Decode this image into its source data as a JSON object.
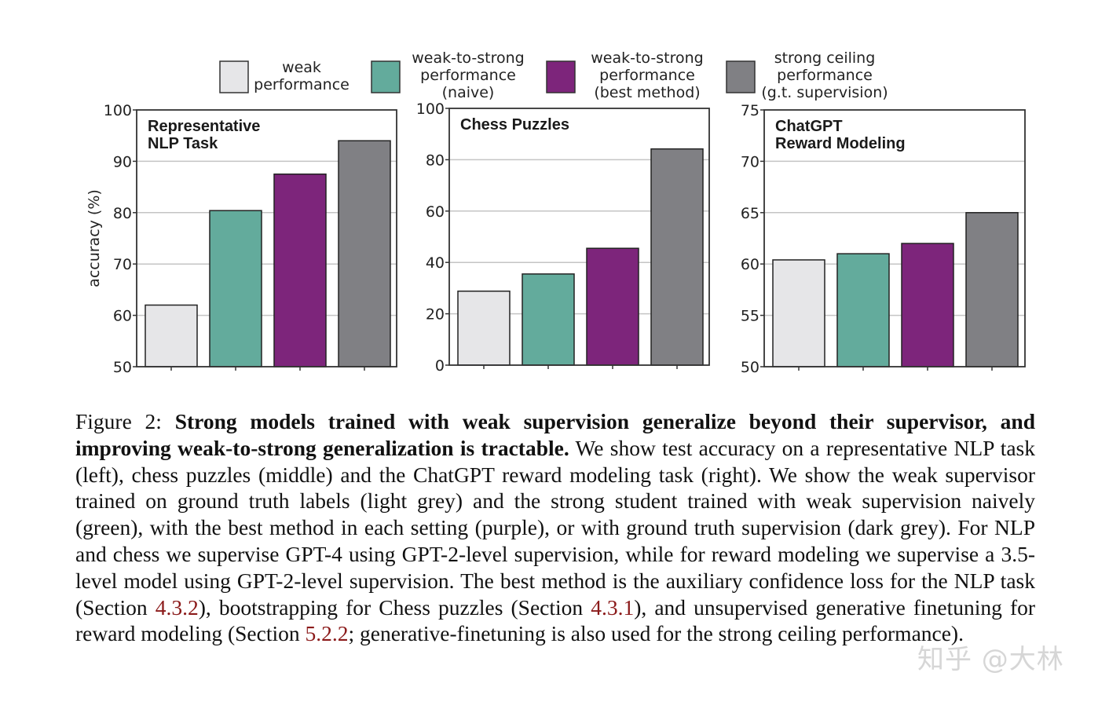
{
  "legend": [
    {
      "label": [
        "weak",
        "performance"
      ],
      "color": "#e6e6e8"
    },
    {
      "label": [
        "weak-to-strong",
        "performance",
        "(naive)"
      ],
      "color": "#63ab9c"
    },
    {
      "label": [
        "weak-to-strong",
        "performance",
        "(best method)"
      ],
      "color": "#7d257b"
    },
    {
      "label": [
        "strong ceiling",
        "performance",
        "(g.t. supervision)"
      ],
      "color": "#808084"
    }
  ],
  "chart_data": [
    {
      "type": "bar",
      "title": [
        "Representative",
        "NLP Task"
      ],
      "ylabel": "accuracy (%)",
      "ylim": [
        50,
        100
      ],
      "yticks": [
        50,
        60,
        70,
        80,
        90,
        100
      ],
      "grid": true,
      "categories": [
        "weak performance",
        "weak-to-strong performance (naive)",
        "weak-to-strong performance (best method)",
        "strong ceiling performance (g.t. supervision)"
      ],
      "values": [
        62,
        80.4,
        87.5,
        94
      ]
    },
    {
      "type": "bar",
      "title": [
        "Chess Puzzles"
      ],
      "ylabel": "",
      "ylim": [
        0,
        100
      ],
      "yticks": [
        0,
        20,
        40,
        60,
        80,
        100
      ],
      "grid": true,
      "categories": [
        "weak performance",
        "weak-to-strong performance (naive)",
        "weak-to-strong performance (best method)",
        "strong ceiling performance (g.t. supervision)"
      ],
      "values": [
        28.8,
        35.5,
        45.5,
        84.2
      ]
    },
    {
      "type": "bar",
      "title": [
        "ChatGPT",
        "Reward Modeling"
      ],
      "ylabel": "",
      "ylim": [
        50,
        75
      ],
      "yticks": [
        50,
        55,
        60,
        65,
        70,
        75
      ],
      "grid": true,
      "categories": [
        "weak performance",
        "weak-to-strong performance (naive)",
        "weak-to-strong performance (best method)",
        "strong ceiling performance (g.t. supervision)"
      ],
      "values": [
        60.4,
        61,
        62,
        65
      ]
    }
  ],
  "caption": [
    {
      "t": "Figure 2: ",
      "s": ""
    },
    {
      "t": "Strong models trained with weak supervision generalize beyond their supervisor, and improving weak-to-strong generalization is tractable.",
      "s": "b"
    },
    {
      "t": " We show test accuracy on a representative NLP task (left), chess puzzles (middle) and the ChatGPT reward modeling task (right). We show the weak supervisor trained on ground truth labels (light grey) and the strong student trained with weak supervision naively (green), with the best method in each setting (purple), or with ground truth supervision (dark grey).  For NLP and chess we supervise GPT-4 using GPT-2-level supervision, while for reward modeling we supervise a 3.5-level model using GPT-2-level supervision. The best method is the auxiliary confidence loss for the NLP task (Section ",
      "s": ""
    },
    {
      "t": "4.3.2",
      "s": "ref"
    },
    {
      "t": "), bootstrapping for Chess puzzles (Section ",
      "s": ""
    },
    {
      "t": "4.3.1",
      "s": "ref"
    },
    {
      "t": "), and unsupervised generative finetuning for reward modeling (Section ",
      "s": ""
    },
    {
      "t": "5.2.2",
      "s": "ref"
    },
    {
      "t": "; generative-finetuning is also used for the strong ceiling performance).",
      "s": ""
    }
  ],
  "watermark": "知乎 @大林"
}
